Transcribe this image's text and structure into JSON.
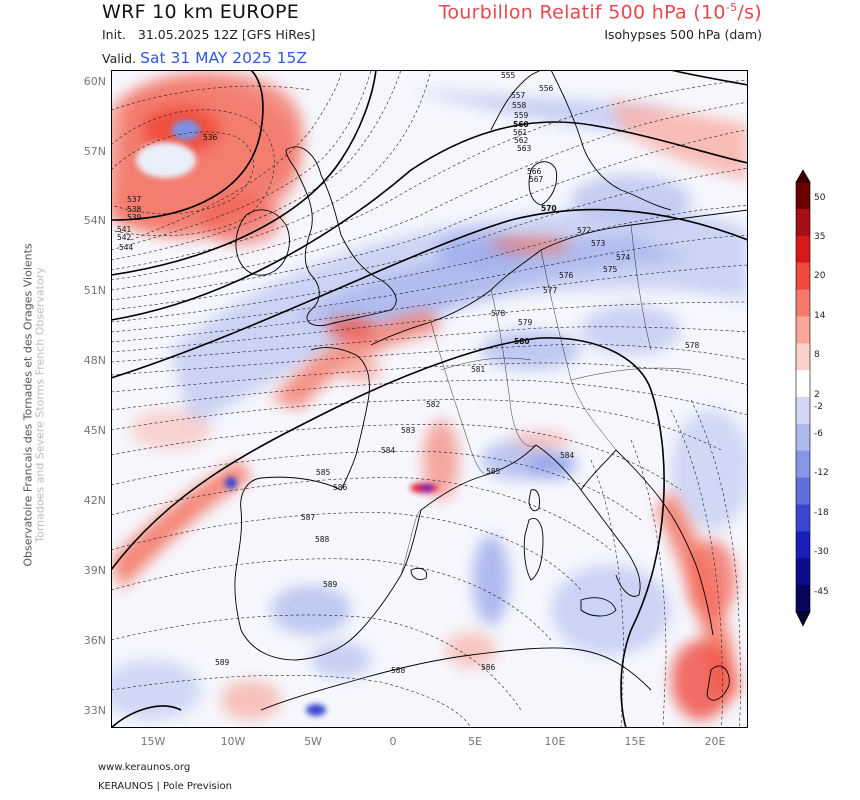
{
  "header": {
    "model_title": "WRF 10 km EUROPE",
    "variable_title_prefix": "Tourbillon Relatif 500 hPa (10",
    "variable_title_exp": "-5",
    "variable_title_suffix": "/s)",
    "init_label": "Init.",
    "init_value": "31.05.2025 12Z [GFS HiRes]",
    "isohypses_label": "Isohypses 500 hPa (dam)",
    "valid_label": "Valid.",
    "valid_value": "Sat 31 MAY 2025 15Z"
  },
  "sidebar": {
    "line1": "Observatoire Francais des Tornades et des Orages Violents",
    "line2": "Tornadoes and Severe Storms French Observatory"
  },
  "footer": {
    "website": "www.keraunos.org",
    "credit": "KERAUNOS | Pole Prevision"
  },
  "axes": {
    "lat_labels": [
      "60N",
      "57N",
      "54N",
      "51N",
      "48N",
      "45N",
      "42N",
      "39N",
      "36N",
      "33N"
    ],
    "lon_labels": [
      "15W",
      "10W",
      "5W",
      "0",
      "5E",
      "10E",
      "15E",
      "20E"
    ]
  },
  "colorbar": {
    "ticks": [
      "50",
      "35",
      "20",
      "14",
      "8",
      "2",
      "-2",
      "-6",
      "-12",
      "-18",
      "-30",
      "-45"
    ],
    "colors": [
      "#6b0000",
      "#a50f15",
      "#d7191c",
      "#ef4a3b",
      "#f57a6c",
      "#f9a59a",
      "#fcd0c8",
      "#ffffff",
      "#d2d8f5",
      "#aeb9ee",
      "#8797e6",
      "#5f70dd",
      "#3a46cf",
      "#1a1fb8",
      "#0c0b8e",
      "#06065a"
    ]
  },
  "contour_labels": [
    "536",
    "537",
    "538",
    "539",
    "541",
    "542",
    "544",
    "555",
    "556",
    "557",
    "558",
    "559",
    "560",
    "561",
    "562",
    "563",
    "566",
    "567",
    "570",
    "572",
    "573",
    "574",
    "575",
    "576",
    "577",
    "578",
    "579",
    "580",
    "581",
    "582",
    "583",
    "584",
    "585",
    "586",
    "587",
    "588",
    "589"
  ],
  "colors": {
    "title_variable": "#e8474c",
    "valid_date": "#2f57e0",
    "coastline": "#000000",
    "isohypse": "#111111"
  }
}
